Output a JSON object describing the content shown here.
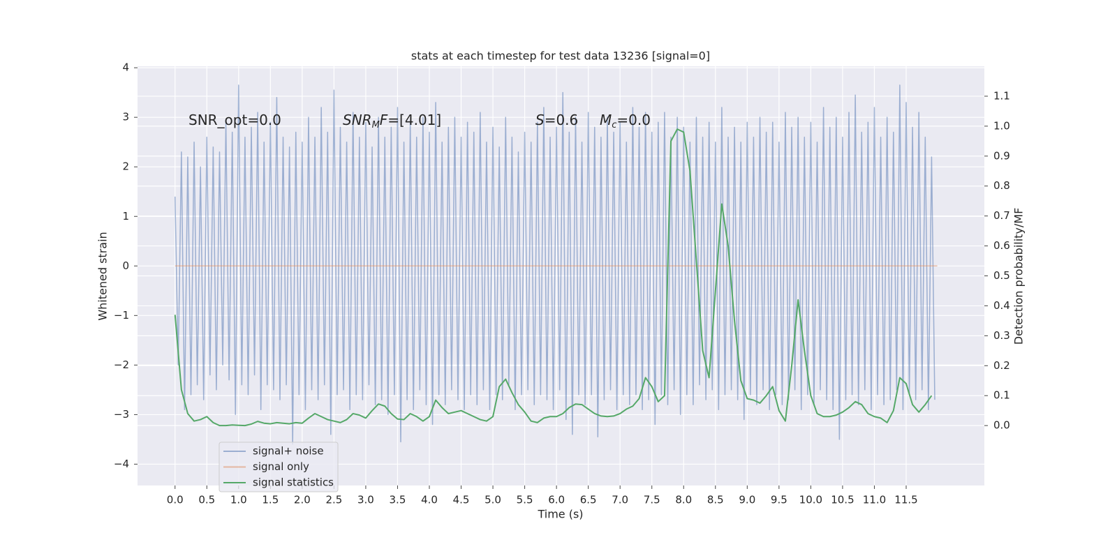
{
  "chart_data": {
    "type": "line",
    "title": "stats at each timestep for test data 13236 [signal=0]",
    "xlabel": "Time (s)",
    "ylabel": "Whitened strain",
    "y2label": "Detection probability/MF",
    "grid": true,
    "legend": "lower left",
    "xlim": [
      -0.59,
      12.73
    ],
    "ylim": [
      -4.43,
      4.03
    ],
    "y2lim": [
      -0.2,
      1.2
    ],
    "xticks": [
      {
        "value": 0,
        "label": "0.0"
      },
      0.5,
      {
        "value": 1,
        "label": "1.0"
      },
      1.5,
      {
        "value": 2,
        "label": "2.0"
      },
      2.5,
      {
        "value": 3,
        "label": "3.0"
      },
      3.5,
      {
        "value": 4,
        "label": "4.0"
      },
      4.5,
      {
        "value": 5,
        "label": "5.0"
      },
      5.5,
      {
        "value": 6,
        "label": "6.0"
      },
      6.5,
      {
        "value": 7,
        "label": "7.0"
      },
      7.5,
      {
        "value": 8,
        "label": "8.0"
      },
      8.5,
      {
        "value": 9,
        "label": "9.0"
      },
      9.5,
      {
        "value": 10,
        "label": "10.0"
      },
      10.5,
      {
        "value": 11,
        "label": "11.0"
      },
      11.5
    ],
    "yticks": [
      {
        "value": -4,
        "label": "−4"
      },
      {
        "value": -3,
        "label": "−3"
      },
      {
        "value": -2,
        "label": "−2"
      },
      {
        "value": -1,
        "label": "−1"
      },
      0,
      1,
      2,
      3,
      4
    ],
    "y2ticks": [
      {
        "value": 0,
        "label": "0.0"
      },
      0.1,
      0.2,
      0.3,
      0.4,
      0.5,
      0.6,
      0.7,
      0.8,
      0.9,
      {
        "value": 1,
        "label": "1.0"
      },
      1.1
    ],
    "annotations": [
      [
        {
          "text": "SNR_opt=0.0"
        }
      ],
      [
        {
          "text": "SNR",
          "italic": true
        },
        {
          "text": "M",
          "italic": true,
          "sub": true
        },
        {
          "text": "F",
          "italic": true
        },
        {
          "text": "=[4.01]"
        }
      ],
      [
        {
          "text": "S",
          "italic": true
        },
        {
          "text": "=0.6"
        }
      ],
      [
        {
          "text": "M",
          "italic": true
        },
        {
          "text": "c",
          "italic": true,
          "sub": true
        },
        {
          "text": "=0.0"
        }
      ]
    ],
    "series": [
      {
        "name": "signal+ noise",
        "color": "#4c72b0",
        "alpha": 0.5,
        "x": [
          0,
          0.05,
          0.1,
          0.15,
          0.2,
          0.25,
          0.3,
          0.35,
          0.4,
          0.45,
          0.5,
          0.55,
          0.6,
          0.65,
          0.7,
          0.75,
          0.8,
          0.85,
          0.9,
          0.95,
          1,
          1.05,
          1.1,
          1.15,
          1.2,
          1.25,
          1.3,
          1.35,
          1.4,
          1.45,
          1.5,
          1.55,
          1.6,
          1.65,
          1.7,
          1.75,
          1.8,
          1.85,
          1.9,
          1.95,
          2,
          2.05,
          2.1,
          2.15,
          2.2,
          2.25,
          2.3,
          2.35,
          2.4,
          2.45,
          2.5,
          2.55,
          2.6,
          2.65,
          2.7,
          2.75,
          2.8,
          2.85,
          2.9,
          2.95,
          3,
          3.05,
          3.1,
          3.15,
          3.2,
          3.25,
          3.3,
          3.35,
          3.4,
          3.45,
          3.5,
          3.55,
          3.6,
          3.65,
          3.7,
          3.75,
          3.8,
          3.85,
          3.9,
          3.95,
          4,
          4.05,
          4.1,
          4.15,
          4.2,
          4.25,
          4.3,
          4.35,
          4.4,
          4.45,
          4.5,
          4.55,
          4.6,
          4.65,
          4.7,
          4.75,
          4.8,
          4.85,
          4.9,
          4.95,
          5,
          5.05,
          5.1,
          5.15,
          5.2,
          5.25,
          5.3,
          5.35,
          5.4,
          5.45,
          5.5,
          5.55,
          5.6,
          5.65,
          5.7,
          5.75,
          5.8,
          5.85,
          5.9,
          5.95,
          6,
          6.05,
          6.1,
          6.15,
          6.2,
          6.25,
          6.3,
          6.35,
          6.4,
          6.45,
          6.5,
          6.55,
          6.6,
          6.65,
          6.7,
          6.75,
          6.8,
          6.85,
          6.9,
          6.95,
          7,
          7.05,
          7.1,
          7.15,
          7.2,
          7.25,
          7.3,
          7.35,
          7.4,
          7.45,
          7.5,
          7.55,
          7.6,
          7.65,
          7.7,
          7.75,
          7.8,
          7.85,
          7.9,
          7.95,
          8,
          8.05,
          8.1,
          8.15,
          8.2,
          8.25,
          8.3,
          8.35,
          8.4,
          8.45,
          8.5,
          8.55,
          8.6,
          8.65,
          8.7,
          8.75,
          8.8,
          8.85,
          8.9,
          8.95,
          9,
          9.05,
          9.1,
          9.15,
          9.2,
          9.25,
          9.3,
          9.35,
          9.4,
          9.45,
          9.5,
          9.55,
          9.6,
          9.65,
          9.7,
          9.75,
          9.8,
          9.85,
          9.9,
          9.95,
          10,
          10.05,
          10.1,
          10.15,
          10.2,
          10.25,
          10.3,
          10.35,
          10.4,
          10.45,
          10.5,
          10.55,
          10.6,
          10.65,
          10.7,
          10.75,
          10.8,
          10.85,
          10.9,
          10.95,
          11,
          11.05,
          11.1,
          11.15,
          11.2,
          11.25,
          11.3,
          11.35,
          11.4,
          11.45,
          11.5,
          11.55,
          11.6,
          11.65,
          11.7,
          11.75,
          11.8,
          11.85,
          11.9,
          11.95
        ],
        "values": [
          1.4,
          -2.0,
          2.3,
          -2.9,
          2.2,
          -2.6,
          2.5,
          -2.4,
          2.0,
          -2.7,
          2.6,
          -2.2,
          2.4,
          -2.5,
          2.3,
          -2.0,
          2.9,
          -2.3,
          2.7,
          -3.0,
          3.65,
          -2.4,
          2.6,
          -2.6,
          2.8,
          -2.2,
          3.1,
          -2.9,
          2.5,
          -2.4,
          2.9,
          -2.5,
          3.4,
          -2.7,
          2.6,
          -2.4,
          2.4,
          -3.6,
          2.7,
          -2.6,
          2.5,
          -2.9,
          3.0,
          -2.5,
          2.6,
          -2.7,
          3.2,
          -2.4,
          2.7,
          -3.4,
          3.55,
          -2.6,
          2.8,
          -2.5,
          2.5,
          -2.9,
          3.1,
          -2.6,
          2.6,
          -2.7,
          2.9,
          -2.4,
          2.4,
          -2.8,
          3.0,
          -2.7,
          2.6,
          -3.0,
          2.8,
          -2.6,
          3.2,
          -3.55,
          2.5,
          -2.7,
          2.9,
          -2.9,
          2.6,
          -2.5,
          3.0,
          -2.8,
          2.7,
          -3.2,
          3.3,
          -2.6,
          2.5,
          -2.8,
          2.8,
          -2.5,
          3.0,
          -2.7,
          2.6,
          -2.9,
          2.9,
          -2.6,
          2.7,
          -2.8,
          3.1,
          -2.5,
          2.5,
          -2.9,
          2.8,
          -2.6,
          2.4,
          -2.7,
          3.0,
          -2.4,
          2.6,
          -2.9,
          2.3,
          -2.6,
          2.7,
          -2.5,
          2.5,
          -2.8,
          2.9,
          -2.6,
          3.2,
          -2.7,
          2.6,
          -2.9,
          2.8,
          -2.5,
          3.5,
          -3.1,
          2.7,
          -3.4,
          3.0,
          -2.6,
          2.5,
          -2.8,
          3.1,
          -2.6,
          2.8,
          -3.45,
          2.6,
          -2.7,
          3.0,
          -2.5,
          2.7,
          -2.9,
          2.9,
          -2.6,
          2.5,
          -2.8,
          3.2,
          -2.6,
          2.8,
          -2.9,
          3.1,
          -2.7,
          2.7,
          -3.2,
          2.9,
          -2.6,
          3.1,
          -2.8,
          2.6,
          -2.5,
          3.0,
          -3.0,
          2.8,
          -2.6,
          2.5,
          -2.8,
          3.0,
          -2.4,
          2.6,
          -2.7,
          2.9,
          -2.5,
          2.5,
          -2.9,
          3.2,
          -2.6,
          2.6,
          -2.5,
          2.8,
          -2.7,
          2.5,
          -3.1,
          2.9,
          -2.6,
          2.6,
          -2.8,
          3.0,
          -2.5,
          2.7,
          -2.9,
          2.9,
          -2.6,
          2.5,
          -2.8,
          3.1,
          -2.7,
          2.8,
          -2.5,
          3.0,
          -2.9,
          2.6,
          -2.6,
          2.9,
          -2.8,
          2.5,
          -2.5,
          3.2,
          -2.7,
          2.8,
          -2.9,
          3.0,
          -3.5,
          2.6,
          -2.7,
          3.1,
          -2.6,
          3.45,
          -2.8,
          2.7,
          -2.5,
          2.9,
          -2.9,
          3.2,
          -2.6,
          2.6,
          -2.8,
          3.0,
          -2.7,
          2.7,
          -2.5,
          3.65,
          -2.9,
          3.3,
          -2.6,
          2.8,
          -2.7,
          3.1,
          -2.5,
          2.6,
          -2.9,
          2.2,
          -2.7
        ]
      },
      {
        "name": "signal only",
        "color": "#dd8452",
        "alpha": 0.5,
        "x": [
          0,
          11.99
        ],
        "values": [
          0,
          0
        ]
      },
      {
        "name": "signal statistics",
        "color": "#55a868",
        "alpha": 1,
        "axis": "y2",
        "x": [
          0,
          0.1,
          0.2,
          0.3,
          0.4,
          0.5,
          0.6,
          0.7,
          0.8,
          0.9,
          1,
          1.1,
          1.2,
          1.3,
          1.4,
          1.5,
          1.6,
          1.7,
          1.8,
          1.9,
          2,
          2.1,
          2.2,
          2.3,
          2.4,
          2.5,
          2.6,
          2.7,
          2.8,
          2.9,
          3,
          3.1,
          3.2,
          3.3,
          3.4,
          3.5,
          3.6,
          3.7,
          3.8,
          3.9,
          4,
          4.1,
          4.2,
          4.3,
          4.4,
          4.5,
          4.6,
          4.7,
          4.8,
          4.9,
          5,
          5.1,
          5.2,
          5.3,
          5.4,
          5.5,
          5.6,
          5.7,
          5.8,
          5.9,
          6,
          6.1,
          6.2,
          6.3,
          6.4,
          6.5,
          6.6,
          6.7,
          6.8,
          6.9,
          7,
          7.1,
          7.2,
          7.3,
          7.4,
          7.5,
          7.6,
          7.7,
          7.8,
          7.9,
          8,
          8.1,
          8.2,
          8.3,
          8.4,
          8.5,
          8.6,
          8.7,
          8.8,
          8.9,
          9,
          9.1,
          9.2,
          9.3,
          9.4,
          9.5,
          9.6,
          9.7,
          9.8,
          9.9,
          10,
          10.1,
          10.2,
          10.3,
          10.4,
          10.5,
          10.6,
          10.7,
          10.8,
          10.9,
          11,
          11.1,
          11.2,
          11.3,
          11.4,
          11.5,
          11.6,
          11.7,
          11.8,
          11.9
        ],
        "values": [
          0.37,
          0.12,
          0.04,
          0.015,
          0.02,
          0.03,
          0.01,
          0.0,
          0.0,
          0.002,
          0.001,
          0.0,
          0.005,
          0.014,
          0.008,
          0.006,
          0.01,
          0.008,
          0.006,
          0.01,
          0.008,
          0.025,
          0.04,
          0.03,
          0.02,
          0.015,
          0.01,
          0.02,
          0.04,
          0.035,
          0.025,
          0.05,
          0.072,
          0.065,
          0.04,
          0.022,
          0.02,
          0.04,
          0.03,
          0.015,
          0.03,
          0.085,
          0.06,
          0.04,
          0.045,
          0.05,
          0.04,
          0.03,
          0.02,
          0.015,
          0.03,
          0.13,
          0.155,
          0.11,
          0.07,
          0.045,
          0.015,
          0.01,
          0.025,
          0.03,
          0.03,
          0.04,
          0.06,
          0.072,
          0.07,
          0.055,
          0.04,
          0.032,
          0.03,
          0.032,
          0.04,
          0.055,
          0.065,
          0.09,
          0.16,
          0.13,
          0.08,
          0.1,
          0.95,
          0.99,
          0.98,
          0.85,
          0.55,
          0.25,
          0.16,
          0.45,
          0.74,
          0.6,
          0.35,
          0.15,
          0.09,
          0.085,
          0.075,
          0.1,
          0.13,
          0.05,
          0.015,
          0.2,
          0.42,
          0.25,
          0.1,
          0.04,
          0.03,
          0.03,
          0.035,
          0.045,
          0.06,
          0.08,
          0.07,
          0.04,
          0.03,
          0.025,
          0.01,
          0.05,
          0.16,
          0.14,
          0.07,
          0.045,
          0.07,
          0.1
        ]
      }
    ]
  }
}
